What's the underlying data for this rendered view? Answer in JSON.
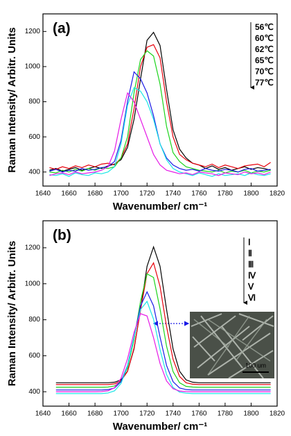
{
  "chart_data": [
    {
      "type": "line",
      "title": "(a)",
      "xlabel": "Wavenumber/ cm⁻¹",
      "ylabel": "Raman Intensity/ Arbitr. Units",
      "x": [
        1645,
        1650,
        1655,
        1660,
        1665,
        1670,
        1675,
        1680,
        1685,
        1690,
        1695,
        1700,
        1705,
        1710,
        1715,
        1720,
        1725,
        1730,
        1735,
        1740,
        1745,
        1750,
        1755,
        1760,
        1765,
        1770,
        1775,
        1780,
        1785,
        1790,
        1795,
        1800,
        1805,
        1810,
        1815
      ],
      "xlim": [
        1640,
        1820
      ],
      "xticks": [
        1640,
        1660,
        1680,
        1700,
        1720,
        1740,
        1760,
        1780,
        1800,
        1820
      ],
      "ylim": [
        320,
        1300
      ],
      "yticks": [
        400,
        600,
        800,
        1000,
        1200
      ],
      "legend": "top-right",
      "series": [
        {
          "name": "56℃",
          "color": "#000000",
          "values": [
            410,
            420,
            405,
            415,
            425,
            410,
            420,
            430,
            420,
            435,
            445,
            470,
            540,
            700,
            930,
            1150,
            1195,
            1120,
            870,
            640,
            530,
            480,
            450,
            440,
            420,
            435,
            415,
            425,
            410,
            420,
            430,
            415,
            425,
            420,
            410
          ]
        },
        {
          "name": "60℃",
          "color": "#e8000b",
          "values": [
            425,
            415,
            430,
            420,
            435,
            425,
            440,
            430,
            445,
            450,
            440,
            480,
            560,
            760,
            1000,
            1110,
            1125,
            1050,
            800,
            600,
            500,
            470,
            450,
            440,
            430,
            445,
            425,
            440,
            430,
            420,
            435,
            440,
            445,
            430,
            455
          ]
        },
        {
          "name": "62℃",
          "color": "#1bd41b",
          "values": [
            400,
            395,
            410,
            400,
            415,
            405,
            420,
            410,
            425,
            420,
            430,
            480,
            600,
            850,
            1040,
            1090,
            1060,
            900,
            660,
            510,
            460,
            430,
            420,
            410,
            405,
            400,
            410,
            395,
            405,
            400,
            410,
            395,
            405,
            400,
            410
          ]
        },
        {
          "name": "65℃",
          "color": "#1a1ae6",
          "values": [
            405,
            415,
            400,
            410,
            405,
            420,
            410,
            415,
            425,
            430,
            460,
            580,
            800,
            970,
            930,
            850,
            720,
            560,
            480,
            440,
            420,
            410,
            415,
            405,
            420,
            410,
            405,
            415,
            410,
            400,
            415,
            420,
            405,
            410,
            415
          ]
        },
        {
          "name": "70℃",
          "color": "#19e6e6",
          "values": [
            385,
            380,
            390,
            375,
            395,
            385,
            380,
            395,
            390,
            400,
            430,
            560,
            780,
            880,
            860,
            800,
            700,
            560,
            470,
            420,
            400,
            390,
            380,
            395,
            385,
            375,
            390,
            380,
            385,
            390,
            380,
            395,
            385,
            380,
            390
          ]
        },
        {
          "name": "77℃",
          "color": "#e619e6",
          "values": [
            380,
            390,
            395,
            385,
            400,
            390,
            395,
            400,
            410,
            430,
            520,
            700,
            850,
            800,
            700,
            600,
            500,
            440,
            410,
            400,
            390,
            395,
            385,
            400,
            395,
            390,
            380,
            395,
            390,
            385,
            400,
            390,
            395,
            385,
            400
          ]
        }
      ]
    },
    {
      "type": "line",
      "title": "(b)",
      "xlabel": "Wavenumber/ cm⁻¹",
      "ylabel": "Raman Intensity/ Arbitr. Units",
      "inset_label": "100 um",
      "x": [
        1650,
        1655,
        1660,
        1665,
        1670,
        1675,
        1680,
        1685,
        1690,
        1695,
        1700,
        1705,
        1710,
        1715,
        1720,
        1725,
        1730,
        1735,
        1740,
        1745,
        1750,
        1755,
        1760,
        1765,
        1770,
        1775,
        1780,
        1785,
        1790,
        1795,
        1800,
        1805,
        1810,
        1815
      ],
      "xlim": [
        1640,
        1820
      ],
      "xticks": [
        1640,
        1660,
        1680,
        1700,
        1720,
        1740,
        1760,
        1780,
        1800,
        1820
      ],
      "ylim": [
        320,
        1350
      ],
      "yticks": [
        400,
        600,
        800,
        1000,
        1200
      ],
      "legend": "top-right",
      "series": [
        {
          "name": "Ⅰ",
          "color": "#000000",
          "values": [
            450,
            450,
            450,
            450,
            450,
            450,
            450,
            450,
            450,
            453,
            466,
            514,
            638,
            857,
            1097,
            1205,
            1097,
            857,
            638,
            514,
            466,
            453,
            450,
            450,
            450,
            450,
            450,
            450,
            450,
            450,
            450,
            450,
            450,
            450
          ]
        },
        {
          "name": "Ⅱ",
          "color": "#e8000b",
          "values": [
            440,
            440,
            440,
            440,
            440,
            440,
            440,
            440,
            440,
            444,
            460,
            513,
            643,
            853,
            1056,
            1116,
            985,
            762,
            580,
            485,
            450,
            442,
            440,
            440,
            440,
            440,
            440,
            440,
            440,
            440,
            440,
            440,
            440,
            440
          ]
        },
        {
          "name": "Ⅲ",
          "color": "#1bd41b",
          "values": [
            425,
            425,
            425,
            425,
            425,
            425,
            425,
            425,
            426,
            432,
            457,
            533,
            690,
            902,
            1055,
            1035,
            860,
            653,
            512,
            450,
            430,
            426,
            425,
            425,
            425,
            425,
            425,
            425,
            425,
            425,
            425,
            425,
            425,
            425
          ]
        },
        {
          "name": "Ⅳ",
          "color": "#1a1ae6",
          "values": [
            410,
            410,
            410,
            410,
            410,
            410,
            410,
            410,
            412,
            421,
            456,
            546,
            704,
            877,
            955,
            877,
            704,
            546,
            456,
            421,
            412,
            410,
            410,
            410,
            410,
            410,
            410,
            410,
            410,
            410,
            410,
            410,
            410,
            410
          ]
        },
        {
          "name": "Ⅴ",
          "color": "#19e6e6",
          "values": [
            390,
            390,
            390,
            390,
            390,
            390,
            390,
            390,
            393,
            405,
            446,
            543,
            703,
            857,
            902,
            803,
            634,
            496,
            424,
            398,
            392,
            390,
            390,
            390,
            390,
            390,
            390,
            390,
            390,
            390,
            390,
            390,
            390,
            390
          ]
        },
        {
          "name": "Ⅵ",
          "color": "#e619e6",
          "values": [
            400,
            400,
            400,
            400,
            400,
            400,
            400,
            401,
            405,
            422,
            475,
            583,
            729,
            834,
            821,
            700,
            557,
            460,
            417,
            404,
            401,
            400,
            400,
            400,
            400,
            400,
            400,
            400,
            400,
            400,
            400,
            400,
            400,
            400
          ]
        }
      ]
    }
  ]
}
